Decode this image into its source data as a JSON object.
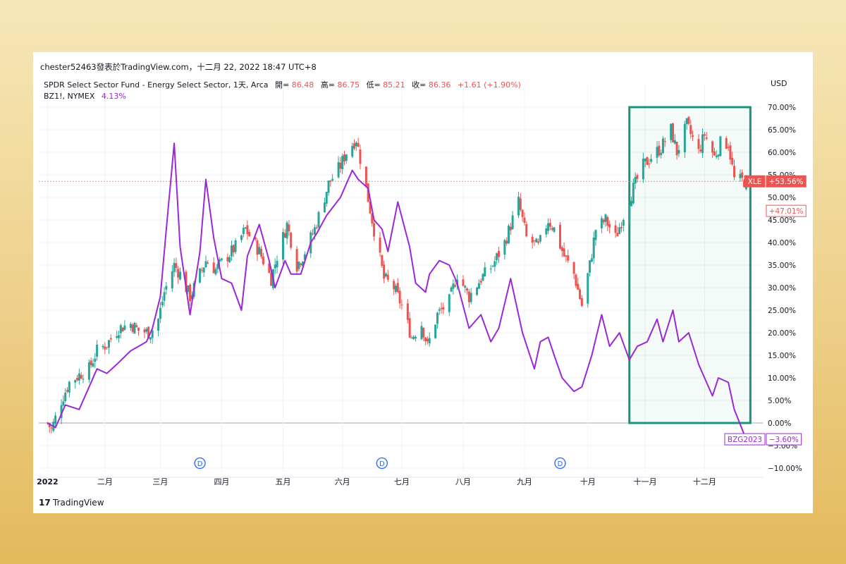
{
  "header": {
    "publisher": "chester52463發表於TradingView.com，十二月 22, 2022 18:47 UTC+8",
    "symbol": "SPDR Select Sector Fund - Energy Select Sector, 1天, Arca",
    "ohlc": [
      {
        "label": "開=",
        "value": "86.48"
      },
      {
        "label": "高=",
        "value": "86.75"
      },
      {
        "label": "低=",
        "value": "85.21"
      },
      {
        "label": "收=",
        "value": "86.36"
      }
    ],
    "change": "+1.61 (+1.90%)",
    "compare_symbol": "BZ1!, NYMEX",
    "compare_value": "4.13%",
    "currency": "USD"
  },
  "footer": {
    "brand": "TradingView",
    "logo_mark": "17"
  },
  "colors": {
    "up": "#26a69a",
    "down": "#ef5350",
    "compare": "#9c27d6",
    "highlight_box": "#1a9479",
    "current_line": "#f08c8c"
  },
  "chart_data": {
    "type": "line",
    "y_unit": "percent change",
    "ylim": [
      -10,
      70
    ],
    "y_ticks": [
      "70.00%",
      "65.00%",
      "60.00%",
      "55.00%",
      "50.00%",
      "45.00%",
      "40.00%",
      "35.00%",
      "30.00%",
      "25.00%",
      "20.00%",
      "15.00%",
      "10.00%",
      "5.00%",
      "0.00%",
      "−5.00%",
      "−10.00%"
    ],
    "x_ticks": [
      "2022",
      "二月",
      "三月",
      "四月",
      "五月",
      "六月",
      "七月",
      "八月",
      "九月",
      "十月",
      "十一月",
      "十二月"
    ],
    "dividend_marker": "D",
    "grid": true,
    "series": [
      {
        "name": "XLE",
        "style": "candlestick",
        "close_points": [
          {
            "x": "2022-01-03",
            "y": 0
          },
          {
            "x": "2022-01-05",
            "y": -1.5
          },
          {
            "x": "2022-01-10",
            "y": 5
          },
          {
            "x": "2022-01-14",
            "y": 9
          },
          {
            "x": "2022-01-20",
            "y": 11
          },
          {
            "x": "2022-01-24",
            "y": 12
          },
          {
            "x": "2022-01-28",
            "y": 16
          },
          {
            "x": "2022-02-02",
            "y": 17.5
          },
          {
            "x": "2022-02-08",
            "y": 21
          },
          {
            "x": "2022-02-14",
            "y": 22
          },
          {
            "x": "2022-02-18",
            "y": 20.5
          },
          {
            "x": "2022-02-24",
            "y": 20
          },
          {
            "x": "2022-02-28",
            "y": 23
          },
          {
            "x": "2022-03-03",
            "y": 29
          },
          {
            "x": "2022-03-08",
            "y": 35
          },
          {
            "x": "2022-03-11",
            "y": 33
          },
          {
            "x": "2022-03-16",
            "y": 28
          },
          {
            "x": "2022-03-21",
            "y": 33
          },
          {
            "x": "2022-03-24",
            "y": 36
          },
          {
            "x": "2022-03-29",
            "y": 34
          },
          {
            "x": "2022-04-04",
            "y": 37
          },
          {
            "x": "2022-04-08",
            "y": 39
          },
          {
            "x": "2022-04-13",
            "y": 43
          },
          {
            "x": "2022-04-20",
            "y": 38
          },
          {
            "x": "2022-04-26",
            "y": 32
          },
          {
            "x": "2022-04-29",
            "y": 37
          },
          {
            "x": "2022-05-04",
            "y": 44
          },
          {
            "x": "2022-05-09",
            "y": 35
          },
          {
            "x": "2022-05-12",
            "y": 37
          },
          {
            "x": "2022-05-18",
            "y": 43
          },
          {
            "x": "2022-05-25",
            "y": 53
          },
          {
            "x": "2022-05-31",
            "y": 57
          },
          {
            "x": "2022-06-03",
            "y": 60
          },
          {
            "x": "2022-06-08",
            "y": 63
          },
          {
            "x": "2022-06-13",
            "y": 52
          },
          {
            "x": "2022-06-16",
            "y": 45
          },
          {
            "x": "2022-06-22",
            "y": 32
          },
          {
            "x": "2022-06-27",
            "y": 30
          },
          {
            "x": "2022-07-01",
            "y": 26
          },
          {
            "x": "2022-07-06",
            "y": 19
          },
          {
            "x": "2022-07-11",
            "y": 22
          },
          {
            "x": "2022-07-14",
            "y": 17
          },
          {
            "x": "2022-07-19",
            "y": 24
          },
          {
            "x": "2022-07-25",
            "y": 27
          },
          {
            "x": "2022-07-29",
            "y": 33
          },
          {
            "x": "2022-08-04",
            "y": 28
          },
          {
            "x": "2022-08-10",
            "y": 32
          },
          {
            "x": "2022-08-16",
            "y": 35
          },
          {
            "x": "2022-08-22",
            "y": 40
          },
          {
            "x": "2022-08-29",
            "y": 49
          },
          {
            "x": "2022-09-02",
            "y": 41
          },
          {
            "x": "2022-09-08",
            "y": 39
          },
          {
            "x": "2022-09-13",
            "y": 45
          },
          {
            "x": "2022-09-16",
            "y": 43
          },
          {
            "x": "2022-09-21",
            "y": 37
          },
          {
            "x": "2022-09-26",
            "y": 33
          },
          {
            "x": "2022-09-30",
            "y": 26
          },
          {
            "x": "2022-10-04",
            "y": 35
          },
          {
            "x": "2022-10-07",
            "y": 43
          },
          {
            "x": "2022-10-12",
            "y": 45
          },
          {
            "x": "2022-10-17",
            "y": 41
          },
          {
            "x": "2022-10-21",
            "y": 46
          },
          {
            "x": "2022-10-26",
            "y": 52
          },
          {
            "x": "2022-10-31",
            "y": 57
          },
          {
            "x": "2022-11-04",
            "y": 59
          },
          {
            "x": "2022-11-09",
            "y": 61
          },
          {
            "x": "2022-11-14",
            "y": 65
          },
          {
            "x": "2022-11-17",
            "y": 60
          },
          {
            "x": "2022-11-22",
            "y": 66
          },
          {
            "x": "2022-11-28",
            "y": 60
          },
          {
            "x": "2022-12-01",
            "y": 64
          },
          {
            "x": "2022-12-06",
            "y": 59
          },
          {
            "x": "2022-12-09",
            "y": 62
          },
          {
            "x": "2022-12-13",
            "y": 62
          },
          {
            "x": "2022-12-16",
            "y": 54
          },
          {
            "x": "2022-12-22",
            "y": 53.56
          }
        ],
        "last_value_label": "+53.56%"
      },
      {
        "name": "XLE",
        "style": "marker",
        "last_value_label": "+47.01%"
      },
      {
        "name": "BZG2023",
        "style": "line",
        "points": [
          {
            "x": "2022-01-03",
            "y": 0
          },
          {
            "x": "2022-01-07",
            "y": -1
          },
          {
            "x": "2022-01-12",
            "y": 4
          },
          {
            "x": "2022-01-19",
            "y": 3
          },
          {
            "x": "2022-01-24",
            "y": 8
          },
          {
            "x": "2022-01-28",
            "y": 12
          },
          {
            "x": "2022-02-02",
            "y": 11
          },
          {
            "x": "2022-02-07",
            "y": 13
          },
          {
            "x": "2022-02-14",
            "y": 16
          },
          {
            "x": "2022-02-18",
            "y": 17
          },
          {
            "x": "2022-02-22",
            "y": 18
          },
          {
            "x": "2022-02-25",
            "y": 21
          },
          {
            "x": "2022-03-01",
            "y": 28
          },
          {
            "x": "2022-03-04",
            "y": 43
          },
          {
            "x": "2022-03-08",
            "y": 62
          },
          {
            "x": "2022-03-11",
            "y": 39
          },
          {
            "x": "2022-03-16",
            "y": 24
          },
          {
            "x": "2022-03-21",
            "y": 38
          },
          {
            "x": "2022-03-24",
            "y": 54
          },
          {
            "x": "2022-03-28",
            "y": 41
          },
          {
            "x": "2022-04-01",
            "y": 32
          },
          {
            "x": "2022-04-06",
            "y": 31
          },
          {
            "x": "2022-04-11",
            "y": 25
          },
          {
            "x": "2022-04-14",
            "y": 37
          },
          {
            "x": "2022-04-20",
            "y": 44
          },
          {
            "x": "2022-04-25",
            "y": 36
          },
          {
            "x": "2022-04-28",
            "y": 30
          },
          {
            "x": "2022-05-03",
            "y": 36
          },
          {
            "x": "2022-05-06",
            "y": 33
          },
          {
            "x": "2022-05-11",
            "y": 33
          },
          {
            "x": "2022-05-16",
            "y": 40
          },
          {
            "x": "2022-05-19",
            "y": 42
          },
          {
            "x": "2022-05-24",
            "y": 46
          },
          {
            "x": "2022-05-31",
            "y": 50
          },
          {
            "x": "2022-06-06",
            "y": 56
          },
          {
            "x": "2022-06-09",
            "y": 54
          },
          {
            "x": "2022-06-14",
            "y": 52
          },
          {
            "x": "2022-06-17",
            "y": 45
          },
          {
            "x": "2022-06-21",
            "y": 43
          },
          {
            "x": "2022-06-24",
            "y": 38
          },
          {
            "x": "2022-06-29",
            "y": 49
          },
          {
            "x": "2022-07-05",
            "y": 39
          },
          {
            "x": "2022-07-08",
            "y": 31
          },
          {
            "x": "2022-07-13",
            "y": 29
          },
          {
            "x": "2022-07-15",
            "y": 33
          },
          {
            "x": "2022-07-20",
            "y": 36
          },
          {
            "x": "2022-07-25",
            "y": 35
          },
          {
            "x": "2022-07-29",
            "y": 31
          },
          {
            "x": "2022-08-04",
            "y": 21
          },
          {
            "x": "2022-08-10",
            "y": 24
          },
          {
            "x": "2022-08-15",
            "y": 18
          },
          {
            "x": "2022-08-19",
            "y": 21
          },
          {
            "x": "2022-08-25",
            "y": 32
          },
          {
            "x": "2022-08-31",
            "y": 20
          },
          {
            "x": "2022-09-06",
            "y": 12
          },
          {
            "x": "2022-09-09",
            "y": 18
          },
          {
            "x": "2022-09-13",
            "y": 19
          },
          {
            "x": "2022-09-16",
            "y": 15
          },
          {
            "x": "2022-09-20",
            "y": 10
          },
          {
            "x": "2022-09-26",
            "y": 7
          },
          {
            "x": "2022-09-30",
            "y": 8
          },
          {
            "x": "2022-10-05",
            "y": 15
          },
          {
            "x": "2022-10-10",
            "y": 24
          },
          {
            "x": "2022-10-14",
            "y": 17
          },
          {
            "x": "2022-10-19",
            "y": 20
          },
          {
            "x": "2022-10-24",
            "y": 14
          },
          {
            "x": "2022-10-28",
            "y": 17
          },
          {
            "x": "2022-11-02",
            "y": 18
          },
          {
            "x": "2022-11-07",
            "y": 23
          },
          {
            "x": "2022-11-10",
            "y": 18
          },
          {
            "x": "2022-11-15",
            "y": 25
          },
          {
            "x": "2022-11-18",
            "y": 18
          },
          {
            "x": "2022-11-23",
            "y": 20
          },
          {
            "x": "2022-11-28",
            "y": 13
          },
          {
            "x": "2022-12-01",
            "y": 10
          },
          {
            "x": "2022-12-05",
            "y": 6
          },
          {
            "x": "2022-12-08",
            "y": 10
          },
          {
            "x": "2022-12-13",
            "y": 9
          },
          {
            "x": "2022-12-16",
            "y": 3
          },
          {
            "x": "2022-12-22",
            "y": -3.6
          }
        ],
        "last_value_label": "−3.60%"
      }
    ],
    "annotations": [
      {
        "type": "rectangle",
        "x0": "2022-10-24",
        "x1": "2022-12-22",
        "y0": 0,
        "y1": 70
      }
    ],
    "current_price_line": 53.56,
    "dividend_dates": [
      "2022-03-21",
      "2022-06-21",
      "2022-09-19"
    ]
  }
}
